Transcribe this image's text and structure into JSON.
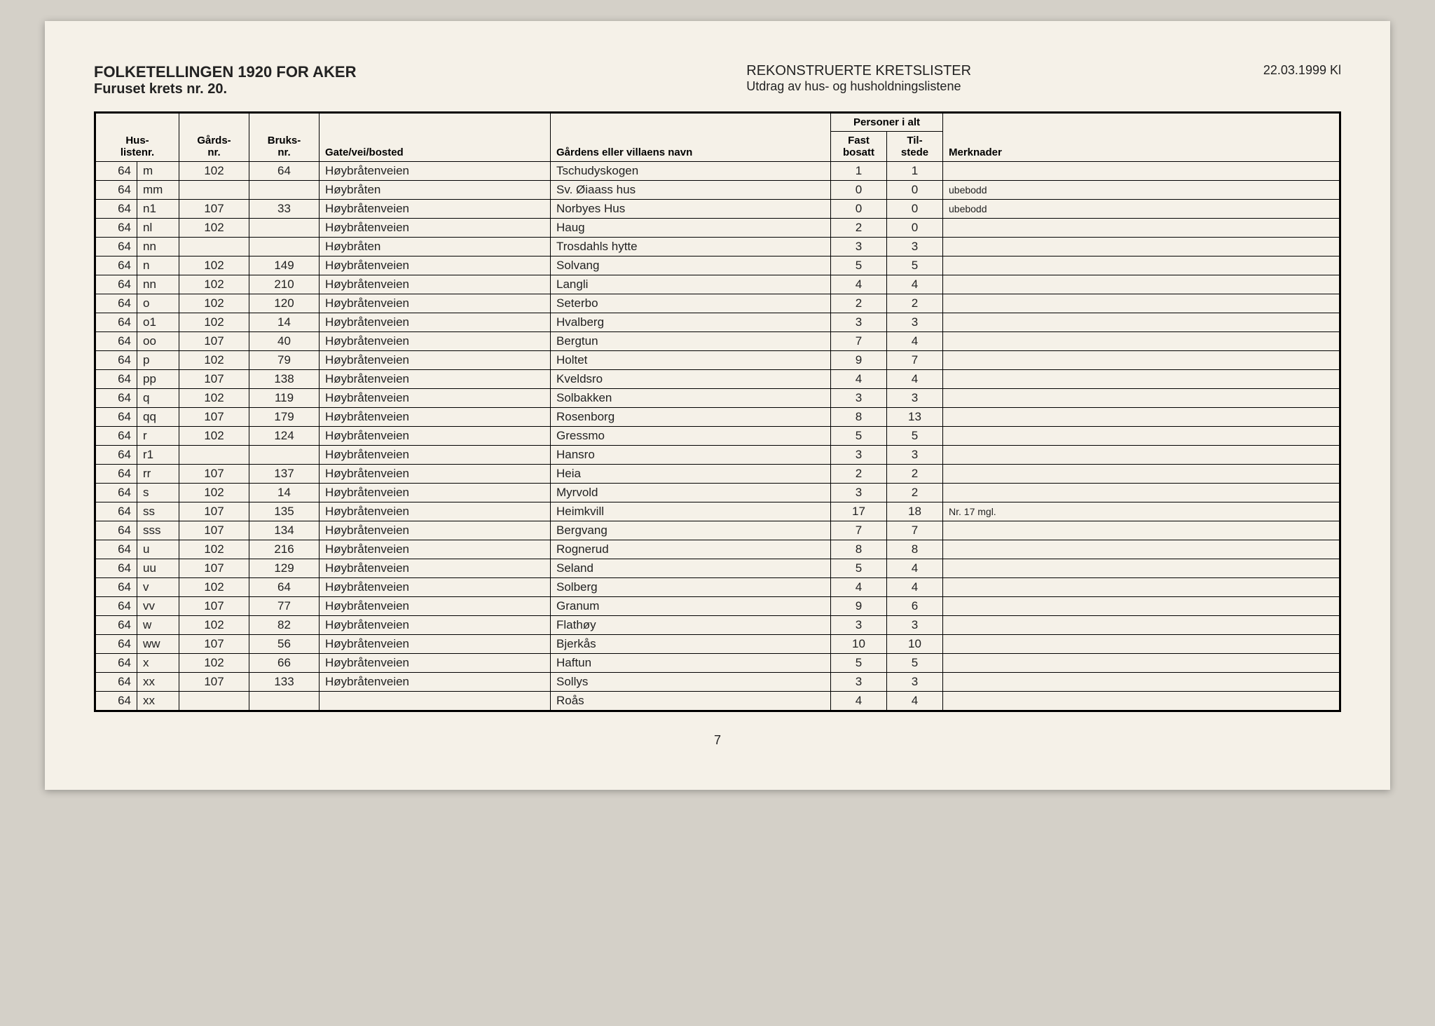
{
  "header": {
    "title_main": "FOLKETELLINGEN 1920 FOR AKER",
    "title_sub": "Furuset krets nr. 20.",
    "subtitle_main": "REKONSTRUERTE KRETSLISTER",
    "subtitle_sub": "Utdrag av hus- og husholdningslistene",
    "date": "22.03.1999 Kl"
  },
  "table": {
    "columns": {
      "hus_listenr": "Hus-\nlistenr.",
      "gards_nr": "Gårds-\nnr.",
      "bruks_nr": "Bruks-\nnr.",
      "gate": "Gate/vei/bosted",
      "navn": "Gårdens eller villaens navn",
      "personer_header": "Personer i alt",
      "fast_bosatt": "Fast\nbosatt",
      "til_stede": "Til-\nstede",
      "merknader": "Merknader"
    },
    "rows": [
      {
        "hus_num": "64",
        "hus_suf": "m",
        "gards": "102",
        "bruks": "64",
        "gate": "Høybråtenveien",
        "navn": "Tschudyskogen",
        "fast": "1",
        "til": "1",
        "merk": ""
      },
      {
        "hus_num": "64",
        "hus_suf": "mm",
        "gards": "",
        "bruks": "",
        "gate": "Høybråten",
        "navn": "Sv. Øiaass hus",
        "fast": "0",
        "til": "0",
        "merk": "ubebodd"
      },
      {
        "hus_num": "64",
        "hus_suf": "n1",
        "gards": "107",
        "bruks": "33",
        "gate": "Høybråtenveien",
        "navn": "Norbyes Hus",
        "fast": "0",
        "til": "0",
        "merk": "ubebodd"
      },
      {
        "hus_num": "64",
        "hus_suf": "nl",
        "gards": "102",
        "bruks": "",
        "gate": "Høybråtenveien",
        "navn": "Haug",
        "fast": "2",
        "til": "0",
        "merk": ""
      },
      {
        "hus_num": "64",
        "hus_suf": "nn",
        "gards": "",
        "bruks": "",
        "gate": "Høybråten",
        "navn": "Trosdahls hytte",
        "fast": "3",
        "til": "3",
        "merk": ""
      },
      {
        "hus_num": "64",
        "hus_suf": "n",
        "gards": "102",
        "bruks": "149",
        "gate": "Høybråtenveien",
        "navn": "Solvang",
        "fast": "5",
        "til": "5",
        "merk": ""
      },
      {
        "hus_num": "64",
        "hus_suf": "nn",
        "gards": "102",
        "bruks": "210",
        "gate": "Høybråtenveien",
        "navn": "Langli",
        "fast": "4",
        "til": "4",
        "merk": ""
      },
      {
        "hus_num": "64",
        "hus_suf": "o",
        "gards": "102",
        "bruks": "120",
        "gate": "Høybråtenveien",
        "navn": "Seterbo",
        "fast": "2",
        "til": "2",
        "merk": ""
      },
      {
        "hus_num": "64",
        "hus_suf": "o1",
        "gards": "102",
        "bruks": "14",
        "gate": "Høybråtenveien",
        "navn": "Hvalberg",
        "fast": "3",
        "til": "3",
        "merk": ""
      },
      {
        "hus_num": "64",
        "hus_suf": "oo",
        "gards": "107",
        "bruks": "40",
        "gate": "Høybråtenveien",
        "navn": "Bergtun",
        "fast": "7",
        "til": "4",
        "merk": ""
      },
      {
        "hus_num": "64",
        "hus_suf": "p",
        "gards": "102",
        "bruks": "79",
        "gate": "Høybråtenveien",
        "navn": "Holtet",
        "fast": "9",
        "til": "7",
        "merk": ""
      },
      {
        "hus_num": "64",
        "hus_suf": "pp",
        "gards": "107",
        "bruks": "138",
        "gate": "Høybråtenveien",
        "navn": "Kveldsro",
        "fast": "4",
        "til": "4",
        "merk": ""
      },
      {
        "hus_num": "64",
        "hus_suf": "q",
        "gards": "102",
        "bruks": "119",
        "gate": "Høybråtenveien",
        "navn": "Solbakken",
        "fast": "3",
        "til": "3",
        "merk": ""
      },
      {
        "hus_num": "64",
        "hus_suf": "qq",
        "gards": "107",
        "bruks": "179",
        "gate": "Høybråtenveien",
        "navn": "Rosenborg",
        "fast": "8",
        "til": "13",
        "merk": ""
      },
      {
        "hus_num": "64",
        "hus_suf": "r",
        "gards": "102",
        "bruks": "124",
        "gate": "Høybråtenveien",
        "navn": "Gressmo",
        "fast": "5",
        "til": "5",
        "merk": ""
      },
      {
        "hus_num": "64",
        "hus_suf": "r1",
        "gards": "",
        "bruks": "",
        "gate": "Høybråtenveien",
        "navn": "Hansro",
        "fast": "3",
        "til": "3",
        "merk": ""
      },
      {
        "hus_num": "64",
        "hus_suf": "rr",
        "gards": "107",
        "bruks": "137",
        "gate": "Høybråtenveien",
        "navn": "Heia",
        "fast": "2",
        "til": "2",
        "merk": ""
      },
      {
        "hus_num": "64",
        "hus_suf": "s",
        "gards": "102",
        "bruks": "14",
        "gate": "Høybråtenveien",
        "navn": "Myrvold",
        "fast": "3",
        "til": "2",
        "merk": ""
      },
      {
        "hus_num": "64",
        "hus_suf": "ss",
        "gards": "107",
        "bruks": "135",
        "gate": "Høybråtenveien",
        "navn": "Heimkvill",
        "fast": "17",
        "til": "18",
        "merk": "Nr. 17 mgl."
      },
      {
        "hus_num": "64",
        "hus_suf": "sss",
        "gards": "107",
        "bruks": "134",
        "gate": "Høybråtenveien",
        "navn": "Bergvang",
        "fast": "7",
        "til": "7",
        "merk": ""
      },
      {
        "hus_num": "64",
        "hus_suf": "u",
        "gards": "102",
        "bruks": "216",
        "gate": "Høybråtenveien",
        "navn": "Rognerud",
        "fast": "8",
        "til": "8",
        "merk": ""
      },
      {
        "hus_num": "64",
        "hus_suf": "uu",
        "gards": "107",
        "bruks": "129",
        "gate": "Høybråtenveien",
        "navn": "Seland",
        "fast": "5",
        "til": "4",
        "merk": ""
      },
      {
        "hus_num": "64",
        "hus_suf": "v",
        "gards": "102",
        "bruks": "64",
        "gate": "Høybråtenveien",
        "navn": "Solberg",
        "fast": "4",
        "til": "4",
        "merk": ""
      },
      {
        "hus_num": "64",
        "hus_suf": "vv",
        "gards": "107",
        "bruks": "77",
        "gate": "Høybråtenveien",
        "navn": "Granum",
        "fast": "9",
        "til": "6",
        "merk": ""
      },
      {
        "hus_num": "64",
        "hus_suf": "w",
        "gards": "102",
        "bruks": "82",
        "gate": "Høybråtenveien",
        "navn": "Flathøy",
        "fast": "3",
        "til": "3",
        "merk": ""
      },
      {
        "hus_num": "64",
        "hus_suf": "ww",
        "gards": "107",
        "bruks": "56",
        "gate": "Høybråtenveien",
        "navn": "Bjerkås",
        "fast": "10",
        "til": "10",
        "merk": ""
      },
      {
        "hus_num": "64",
        "hus_suf": "x",
        "gards": "102",
        "bruks": "66",
        "gate": "Høybråtenveien",
        "navn": "Haftun",
        "fast": "5",
        "til": "5",
        "merk": ""
      },
      {
        "hus_num": "64",
        "hus_suf": "xx",
        "gards": "107",
        "bruks": "133",
        "gate": "Høybråtenveien",
        "navn": "Sollys",
        "fast": "3",
        "til": "3",
        "merk": ""
      },
      {
        "hus_num": "64",
        "hus_suf": "xx",
        "gards": "",
        "bruks": "",
        "gate": "",
        "navn": "Roås",
        "fast": "4",
        "til": "4",
        "merk": ""
      }
    ]
  },
  "page_number": "7"
}
